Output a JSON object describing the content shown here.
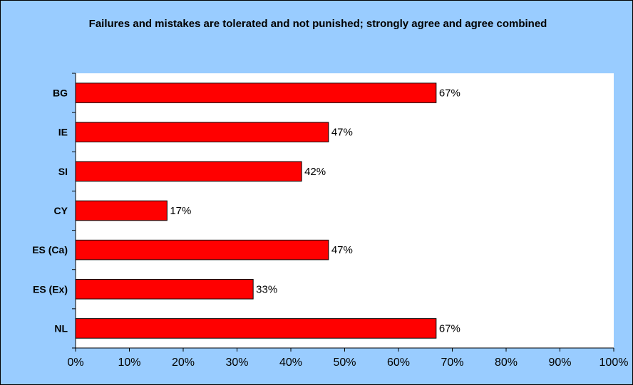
{
  "chart_data": {
    "type": "bar",
    "orientation": "horizontal",
    "title": "Failures and mistakes are tolerated and not punished; strongly agree and agree combined",
    "categories": [
      "BG",
      "IE",
      "SI",
      "CY",
      "ES (Ca)",
      "ES (Ex)",
      "NL"
    ],
    "values": [
      67,
      47,
      42,
      17,
      47,
      33,
      67
    ],
    "data_labels": [
      "67%",
      "47%",
      "42%",
      "17%",
      "47%",
      "33%",
      "67%"
    ],
    "x_ticks": [
      "0%",
      "10%",
      "20%",
      "30%",
      "40%",
      "50%",
      "60%",
      "70%",
      "80%",
      "90%",
      "100%"
    ],
    "xlim": [
      0,
      100
    ],
    "xlabel": "",
    "ylabel": "",
    "grid": false,
    "legend": "none",
    "colors": {
      "bar_fill": "#ff0000",
      "bar_stroke": "#000000",
      "background": "#99ccff",
      "plot_area": "#ffffff"
    }
  }
}
